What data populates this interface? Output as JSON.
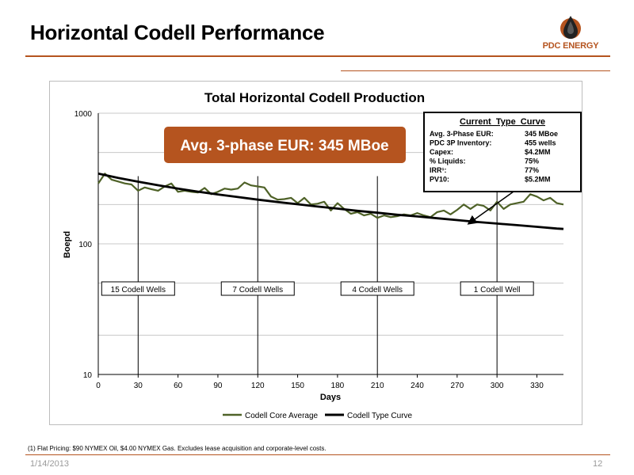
{
  "slide": {
    "title": "Horizontal Codell Performance",
    "logo_text": "PDC ENERGY",
    "date": "1/14/2013",
    "page_number": "12",
    "footnote": "(1) Flat Pricing: $90 NYMEX Oil, $4.00 NYMEX Gas. Excludes lease acquisition and corporate-level costs."
  },
  "colors": {
    "brand": "#b5541f",
    "callout_fill": "#b5541f",
    "series_core": "#4f6228",
    "series_type": "#000000",
    "gridline": "#c8c8c8"
  },
  "chart_data": {
    "type": "line",
    "title": "Total Horizontal Codell Production",
    "xlabel": "Days",
    "ylabel": "Boepd",
    "xlim": [
      0,
      350
    ],
    "ylim": [
      10,
      1000
    ],
    "y_scale": "log",
    "x_ticks": [
      0,
      30,
      60,
      90,
      120,
      150,
      180,
      210,
      240,
      270,
      300,
      330
    ],
    "y_ticks": [
      10,
      100,
      1000
    ],
    "grid": "horizontal",
    "legend_position": "bottom",
    "series": [
      {
        "name": "Codell Core Average",
        "x": [
          0,
          5,
          10,
          15,
          20,
          25,
          30,
          35,
          40,
          45,
          50,
          55,
          60,
          65,
          70,
          75,
          80,
          85,
          90,
          95,
          100,
          105,
          110,
          115,
          120,
          125,
          130,
          135,
          140,
          145,
          150,
          155,
          160,
          165,
          170,
          175,
          180,
          185,
          190,
          195,
          200,
          205,
          210,
          215,
          220,
          225,
          230,
          235,
          240,
          245,
          250,
          255,
          260,
          265,
          270,
          275,
          280,
          285,
          290,
          295,
          300,
          305,
          310,
          315,
          320,
          325,
          330,
          335,
          340,
          345,
          350
        ],
        "y": [
          290,
          345,
          310,
          300,
          290,
          285,
          255,
          270,
          262,
          255,
          275,
          290,
          250,
          255,
          250,
          247,
          268,
          240,
          250,
          265,
          260,
          265,
          295,
          280,
          275,
          270,
          230,
          218,
          220,
          225,
          205,
          225,
          200,
          203,
          210,
          180,
          205,
          185,
          170,
          175,
          165,
          170,
          158,
          165,
          160,
          163,
          168,
          165,
          172,
          165,
          160,
          175,
          180,
          168,
          182,
          200,
          185,
          200,
          195,
          180,
          210,
          185,
          200,
          205,
          210,
          240,
          230,
          215,
          225,
          205,
          200
        ]
      },
      {
        "name": "Codell Type Curve",
        "x": [
          0,
          15,
          30,
          45,
          60,
          75,
          90,
          105,
          120,
          135,
          150,
          165,
          180,
          195,
          210,
          225,
          240,
          255,
          270,
          285,
          300,
          315,
          330,
          345,
          350
        ],
        "y": [
          345,
          320,
          299,
          281,
          265,
          251,
          239,
          228,
          218,
          209,
          201,
          193,
          186,
          179,
          173,
          167,
          162,
          157,
          152,
          147,
          143,
          139,
          135,
          131,
          130
        ]
      }
    ],
    "annotations": {
      "well_labels": [
        {
          "label": "15 Codell Wells",
          "x": 30
        },
        {
          "label": "7 Codell Wells",
          "x": 120
        },
        {
          "label": "4 Codell Wells",
          "x": 210
        },
        {
          "label": "1 Codell Well",
          "x": 300
        }
      ],
      "callout": "Avg. 3-phase EUR: 345 MBoe",
      "type_curve_box": {
        "title": "Current  Type  Curve",
        "rows": [
          {
            "label": "Avg. 3-Phase EUR:",
            "value": "345 MBoe"
          },
          {
            "label": "PDC 3P Inventory:",
            "value": "455 wells"
          },
          {
            "label": "Capex:",
            "value": "$4.2MM"
          },
          {
            "label": "% Liquids:",
            "value": "75%"
          },
          {
            "label": "IRR¹:",
            "value": "77%"
          },
          {
            "label": "PV10:",
            "value": "$5.2MM"
          }
        ]
      }
    }
  }
}
